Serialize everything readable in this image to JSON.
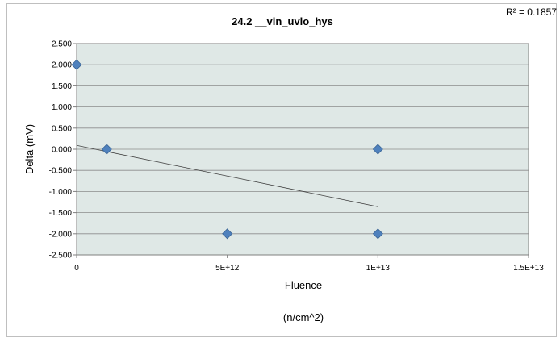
{
  "chart_data": {
    "type": "scatter",
    "title": "24.2 __vin_uvlo_hys",
    "xlabel": "Fluence",
    "xlabel_unit": "(n/cm^2)",
    "ylabel": "Delta (mV)",
    "xlim": [
      0,
      15000000000000.0
    ],
    "ylim": [
      -2.5,
      2.5
    ],
    "x_ticks": [
      0,
      5000000000000.0,
      10000000000000.0,
      15000000000000.0
    ],
    "x_tick_labels": [
      "0",
      "5E+12",
      "1E+13",
      "1.5E+13"
    ],
    "y_ticks": [
      2.5,
      2.0,
      1.5,
      1.0,
      0.5,
      0.0,
      -0.5,
      -1.0,
      -1.5,
      -2.0,
      -2.5
    ],
    "y_tick_labels": [
      "2.500",
      "2.000",
      "1.500",
      "1.000",
      "0.500",
      "0.000",
      "-0.500",
      "-1.000",
      "-1.500",
      "-2.000",
      "-2.500"
    ],
    "grid": "horizontal",
    "plot_background": "#dfe8e6",
    "marker_color": "#4f81bd",
    "series": [
      {
        "points": [
          {
            "x": 0,
            "y": 2.0
          },
          {
            "x": 1000000000000.0,
            "y": 0.0
          },
          {
            "x": 5000000000000.0,
            "y": -2.0
          },
          {
            "x": 10000000000000.0,
            "y": 0.0
          },
          {
            "x": 10000000000000.0,
            "y": -2.0
          }
        ]
      }
    ],
    "trendline": {
      "type": "linear",
      "from": {
        "x": 0,
        "y": 0.09
      },
      "to": {
        "x": 10000000000000.0,
        "y": -1.36
      },
      "r2_label": "R² = 0.1857"
    }
  }
}
